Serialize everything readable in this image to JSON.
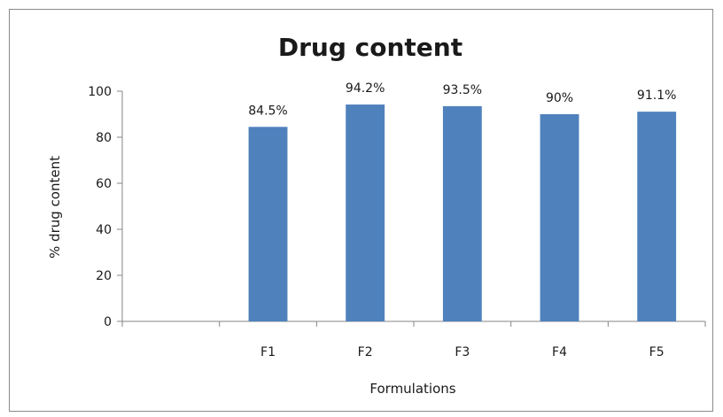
{
  "chart_data": {
    "type": "bar",
    "title": "Drug content",
    "xlabel": "Formulations",
    "ylabel": "% drug content",
    "categories": [
      "",
      "F1",
      "F2",
      "F3",
      "F4",
      "F5"
    ],
    "values": [
      null,
      84.5,
      94.2,
      93.5,
      90,
      91.1
    ],
    "data_labels": [
      "",
      "84.5%",
      "94.2%",
      "93.5%",
      "90%",
      "91.1%"
    ],
    "ylim": [
      0,
      100
    ],
    "yticks": [
      0,
      20,
      40,
      60,
      80,
      100
    ],
    "grid": false,
    "legend": "none",
    "bar_color": "#4f81bd"
  }
}
